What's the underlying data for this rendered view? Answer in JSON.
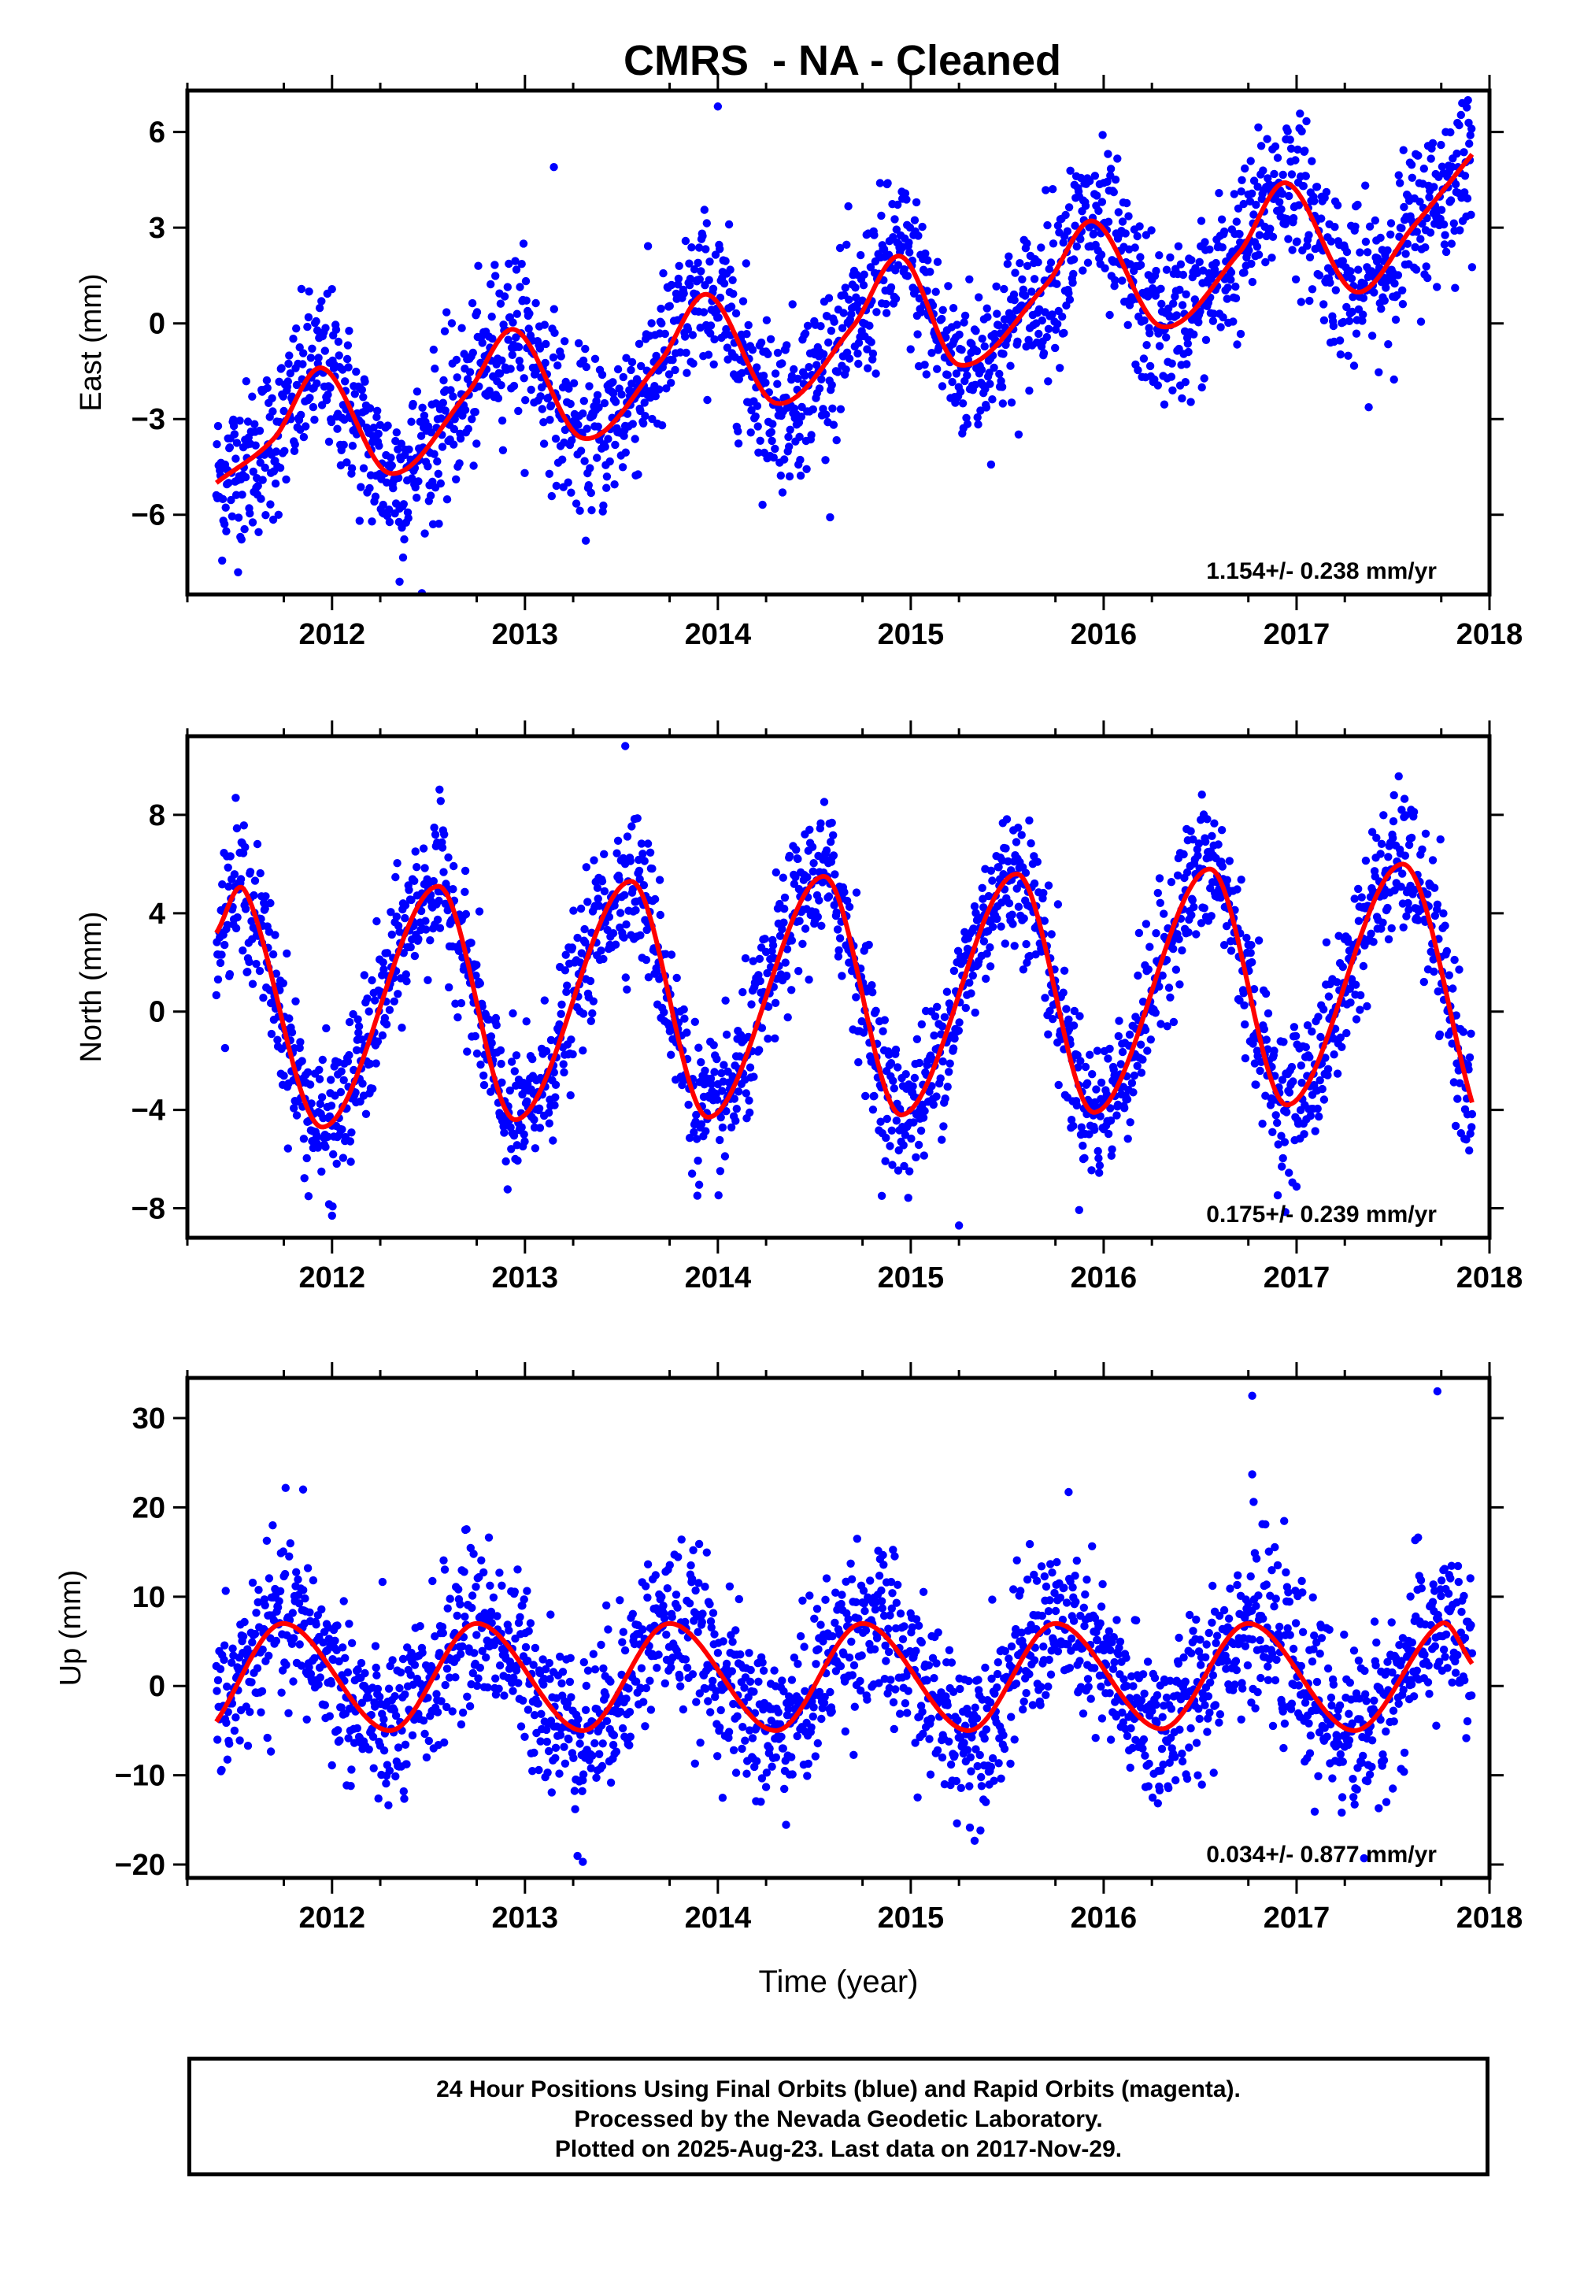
{
  "title": "CMRS  - NA - Cleaned",
  "colors": {
    "points": "#0000ff",
    "fit": "#ff0000",
    "frame": "#000000"
  },
  "footer": {
    "line1": "24 Hour Positions Using Final Orbits (blue) and Rapid Orbits (magenta).",
    "line2": "Processed by the Nevada Geodetic Laboratory.",
    "line3": "Plotted on 2025-Aug-23. Last data on 2017-Nov-29."
  },
  "chart_data": [
    {
      "type": "scatter",
      "ylabel": "East (mm)",
      "xlabel": "",
      "xlim": [
        2011.25,
        2018.0
      ],
      "ylim": [
        -8.5,
        7.3
      ],
      "xticks": [
        2012,
        2013,
        2014,
        2015,
        2016,
        2017,
        2018
      ],
      "yticks": [
        -6,
        -3,
        0,
        3,
        6
      ],
      "ytick_labels": [
        "−6",
        "−3",
        "0",
        "3",
        "6"
      ],
      "rate_label": "1.154+/- 0.238 mm/yr",
      "data_start": 2011.4,
      "data_end": 2017.91,
      "fit_curve": {
        "x": [
          2011.4,
          2011.7,
          2011.95,
          2012.3,
          2012.7,
          2012.95,
          2013.3,
          2013.7,
          2013.95,
          2014.3,
          2014.7,
          2014.95,
          2015.25,
          2015.7,
          2015.95,
          2016.3,
          2016.7,
          2016.95,
          2017.3,
          2017.6,
          2017.91
        ],
        "y": [
          -5.0,
          -3.6,
          -1.4,
          -4.7,
          -2.2,
          -0.2,
          -3.6,
          -1.2,
          0.9,
          -2.5,
          -0.1,
          2.1,
          -1.3,
          1.2,
          3.2,
          -0.1,
          2.2,
          4.4,
          1.0,
          3.0,
          5.3
        ]
      },
      "scatter_noise": 1.25,
      "outliers": [
        [
          2013.15,
          4.9
        ],
        [
          2014.0,
          6.8
        ],
        [
          2012.35,
          -8.1
        ]
      ]
    },
    {
      "type": "scatter",
      "ylabel": "North (mm)",
      "xlabel": "",
      "xlim": [
        2011.25,
        2018.0
      ],
      "ylim": [
        -9.2,
        11.2
      ],
      "xticks": [
        2012,
        2013,
        2014,
        2015,
        2016,
        2017,
        2018
      ],
      "yticks": [
        -8,
        -4,
        0,
        4,
        8
      ],
      "ytick_labels": [
        "−8",
        "−4",
        "0",
        "4",
        "8"
      ],
      "rate_label": "0.175+/- 0.239 mm/yr",
      "data_start": 2011.4,
      "data_end": 2017.91,
      "fit_curve": {
        "x": [
          2011.4,
          2011.55,
          2011.95,
          2012.55,
          2012.95,
          2013.55,
          2013.95,
          2014.55,
          2014.95,
          2015.55,
          2015.95,
          2016.55,
          2016.95,
          2017.55,
          2017.91
        ],
        "y": [
          3.2,
          4.9,
          -4.7,
          5.1,
          -4.4,
          5.3,
          -4.3,
          5.5,
          -4.2,
          5.6,
          -4.1,
          5.8,
          -3.8,
          6.0,
          -3.7
        ]
      },
      "scatter_noise": 1.45,
      "outliers": [
        [
          2013.52,
          10.8
        ],
        [
          2012.0,
          -8.3
        ],
        [
          2015.25,
          -8.7
        ]
      ]
    },
    {
      "type": "scatter",
      "ylabel": "Up (mm)",
      "xlabel": "Time (year)",
      "xlim": [
        2011.25,
        2018.0
      ],
      "ylim": [
        -21.5,
        34.5
      ],
      "xticks": [
        2012,
        2013,
        2014,
        2015,
        2016,
        2017,
        2018
      ],
      "yticks": [
        -20,
        -10,
        0,
        10,
        20,
        30
      ],
      "ytick_labels": [
        "−20",
        "−10",
        "0",
        "10",
        "20",
        "30"
      ],
      "rate_label": "0.034+/- 0.877 mm/yr",
      "data_start": 2011.4,
      "data_end": 2017.91,
      "fit_curve": {
        "x": [
          2011.4,
          2011.75,
          2012.3,
          2012.75,
          2013.3,
          2013.75,
          2014.3,
          2014.75,
          2015.3,
          2015.75,
          2016.3,
          2016.75,
          2017.3,
          2017.75,
          2017.91
        ],
        "y": [
          -4.0,
          7.0,
          -5.0,
          7.0,
          -5.0,
          7.0,
          -5.0,
          7.0,
          -5.0,
          7.0,
          -4.8,
          7.0,
          -5.0,
          7.0,
          2.5
        ]
      },
      "scatter_noise": 4.6,
      "outliers": [
        [
          2016.77,
          32.5
        ],
        [
          2017.73,
          33.0
        ],
        [
          2011.85,
          22.0
        ],
        [
          2016.77,
          23.7
        ],
        [
          2013.3,
          -19.7
        ],
        [
          2017.35,
          -19.3
        ]
      ]
    }
  ]
}
